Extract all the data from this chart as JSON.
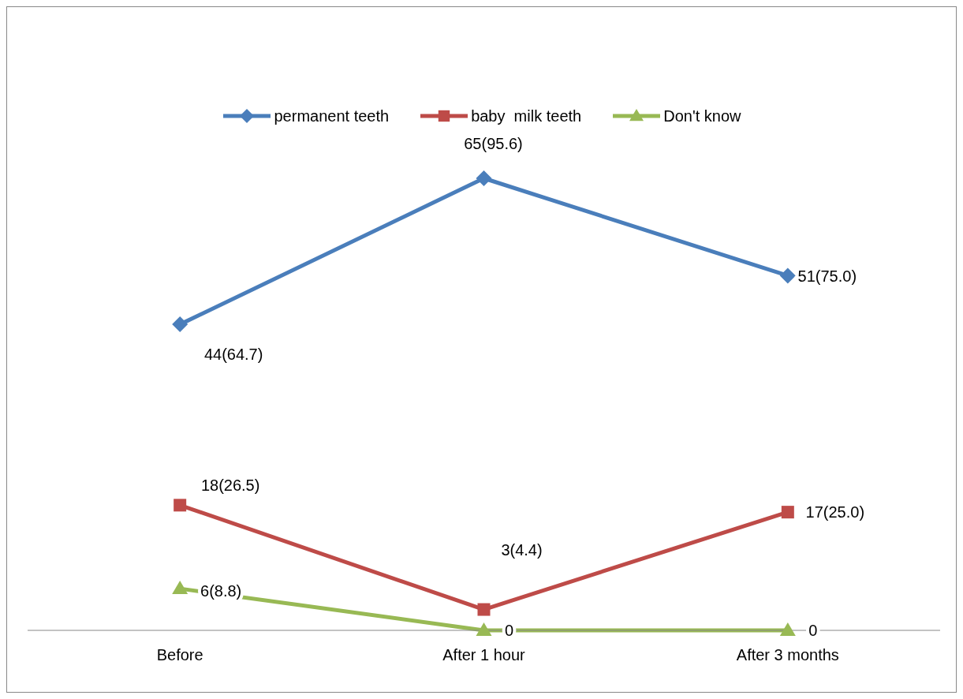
{
  "chart_data": {
    "type": "line",
    "categories": [
      "Before",
      "After 1 hour",
      "After 3 months"
    ],
    "legend": "top",
    "series": [
      {
        "name": "permanent teeth",
        "color": "#4a7ebb",
        "marker": "diamond",
        "values": [
          44,
          65,
          51
        ],
        "value_labels": [
          "44(64.7)",
          "65(95.6)",
          "51(75.0)"
        ]
      },
      {
        "name": "baby  milk teeth",
        "color": "#be4b48",
        "marker": "square",
        "values": [
          18,
          3,
          17
        ],
        "value_labels": [
          "18(26.5)",
          "3(4.4)",
          "17(25.0)"
        ]
      },
      {
        "name": "Don't know",
        "color": "#98b954",
        "marker": "triangle",
        "values": [
          6,
          0,
          0
        ],
        "value_labels": [
          "6(8.8)",
          "0",
          "0"
        ]
      }
    ]
  }
}
